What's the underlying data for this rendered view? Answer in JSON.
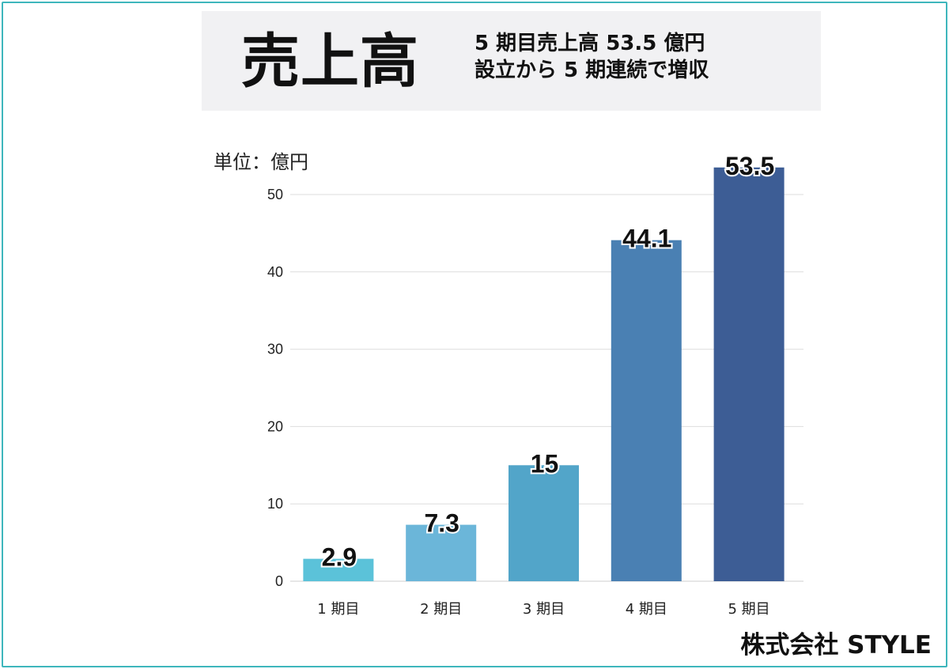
{
  "header": {
    "title": "売上高",
    "subtitle_line1": "5 期目売上高 53.5 億円",
    "subtitle_line2": "設立から 5 期連続で増収"
  },
  "unit_label": "単位：億円",
  "company": "株式会社 STYLE",
  "chart_data": {
    "type": "bar",
    "categories": [
      "1 期目",
      "2 期目",
      "3 期目",
      "4 期目",
      "5 期目"
    ],
    "values": [
      2.9,
      7.3,
      15,
      44.1,
      53.5
    ],
    "data_labels": [
      "2.9",
      "7.3",
      "15",
      "44.1",
      "53.5"
    ],
    "ylim": [
      0,
      50
    ],
    "yticks": [
      0,
      10,
      20,
      30,
      40,
      50
    ],
    "grid": true,
    "colors": [
      "#5bc2d9",
      "#6bb6d9",
      "#52a5c9",
      "#4a80b3",
      "#3d5d95"
    ]
  }
}
